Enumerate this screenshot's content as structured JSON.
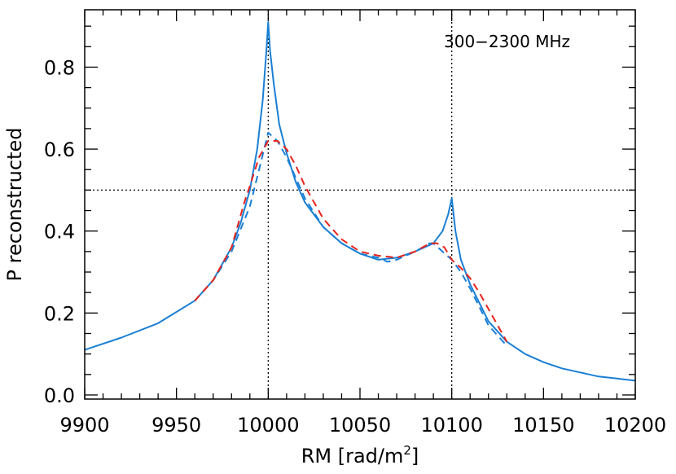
{
  "chart_data": {
    "type": "line",
    "title": "",
    "xlabel": "RM [rad/m",
    "xlabel_sup": "2",
    "xlabel_end": "]",
    "ylabel": "P reconstructed",
    "annotation": "300−2300 MHz",
    "xlim": [
      9900,
      10200
    ],
    "ylim": [
      -0.01,
      0.94
    ],
    "xticks": [
      9900,
      9950,
      10000,
      10050,
      10100,
      10150,
      10200
    ],
    "xtick_labels": [
      "9900",
      "9950",
      "10000",
      "10050",
      "10100",
      "10150",
      "10200"
    ],
    "yticks": [
      0.0,
      0.2,
      0.4,
      0.6,
      0.8
    ],
    "ytick_labels": [
      "0.0",
      "0.2",
      "0.4",
      "0.6",
      "0.8"
    ],
    "grid": false,
    "reference_lines": {
      "vertical": [
        10000,
        10100
      ],
      "horizontal": [
        0.5
      ],
      "style": "dotted"
    },
    "series": [
      {
        "color": "#1a7fd4",
        "style": "solid",
        "x": [
          9900,
          9920,
          9940,
          9960,
          9970,
          9980,
          9985,
          9990,
          9994,
          9997,
          9999,
          10000,
          10001,
          10003,
          10006,
          10010,
          10015,
          10020,
          10030,
          10040,
          10050,
          10060,
          10070,
          10080,
          10090,
          10095,
          10098,
          10100,
          10102,
          10105,
          10110,
          10120,
          10130,
          10140,
          10150,
          10160,
          10170,
          10180,
          10190,
          10200
        ],
        "y": [
          0.11,
          0.14,
          0.175,
          0.23,
          0.28,
          0.36,
          0.42,
          0.5,
          0.6,
          0.72,
          0.84,
          0.91,
          0.84,
          0.76,
          0.66,
          0.59,
          0.52,
          0.47,
          0.41,
          0.37,
          0.345,
          0.33,
          0.335,
          0.35,
          0.37,
          0.4,
          0.44,
          0.48,
          0.4,
          0.33,
          0.27,
          0.18,
          0.13,
          0.1,
          0.08,
          0.065,
          0.055,
          0.045,
          0.04,
          0.035
        ]
      },
      {
        "color": "#1a7fd4",
        "style": "dashed",
        "x": [
          9960,
          9970,
          9980,
          9990,
          9995,
          10000,
          10005,
          10010,
          10015,
          10020,
          10030,
          10040,
          10050,
          10060,
          10065,
          10070,
          10080,
          10088,
          10090,
          10095,
          10100,
          10105,
          10110,
          10120,
          10130
        ],
        "y": [
          0.23,
          0.28,
          0.35,
          0.46,
          0.55,
          0.64,
          0.62,
          0.58,
          0.53,
          0.48,
          0.41,
          0.37,
          0.345,
          0.335,
          0.325,
          0.33,
          0.35,
          0.37,
          0.37,
          0.35,
          0.33,
          0.3,
          0.26,
          0.17,
          0.12
        ]
      },
      {
        "color": "#e8231b",
        "style": "dashed",
        "x": [
          9960,
          9970,
          9980,
          9987,
          9990,
          9995,
          10000,
          10005,
          10010,
          10015,
          10020,
          10030,
          10040,
          10050,
          10060,
          10070,
          10080,
          10088,
          10092,
          10096,
          10100,
          10105,
          10110,
          10115,
          10120,
          10130
        ],
        "y": [
          0.23,
          0.28,
          0.36,
          0.47,
          0.51,
          0.58,
          0.62,
          0.62,
          0.6,
          0.56,
          0.51,
          0.43,
          0.38,
          0.35,
          0.34,
          0.335,
          0.35,
          0.37,
          0.37,
          0.36,
          0.33,
          0.31,
          0.285,
          0.25,
          0.21,
          0.13
        ]
      }
    ]
  }
}
